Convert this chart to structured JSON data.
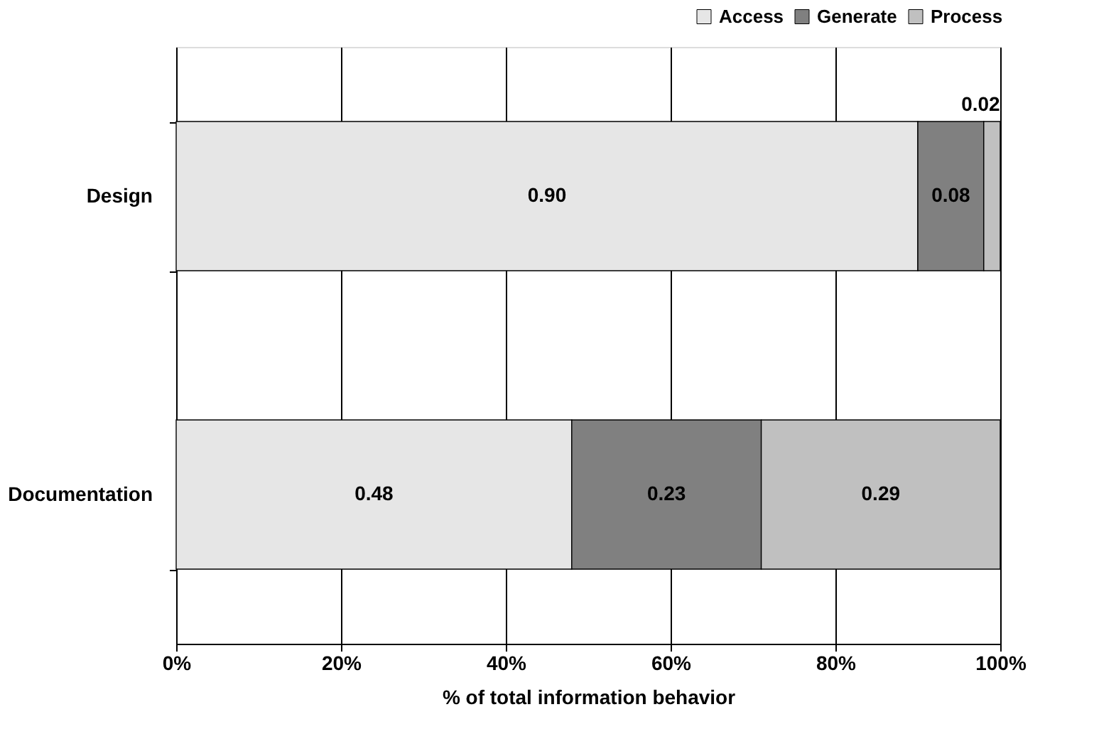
{
  "chart_data": {
    "type": "bar",
    "orientation": "horizontal",
    "stacked": true,
    "categories": [
      "Design",
      "Documentation"
    ],
    "series": [
      {
        "name": "Access",
        "color": "#e6e6e6",
        "values": [
          0.9,
          0.48
        ],
        "value_labels": [
          "0.90",
          "0.48"
        ]
      },
      {
        "name": "Generate",
        "color": "#808080",
        "values": [
          0.08,
          0.23
        ],
        "value_labels": [
          "0.08",
          "0.23"
        ]
      },
      {
        "name": "Process",
        "color": "#c0c0c0",
        "values": [
          0.02,
          0.29
        ],
        "value_labels": [
          "0.02",
          "0.29"
        ]
      }
    ],
    "xlim": [
      0,
      1
    ],
    "xticks": [
      {
        "value": 0,
        "label": "0%"
      },
      {
        "value": 0.2,
        "label": "20%"
      },
      {
        "value": 0.4,
        "label": "40%"
      },
      {
        "value": 0.6,
        "label": "60%"
      },
      {
        "value": 0.8,
        "label": "80%"
      },
      {
        "value": 1,
        "label": "100%"
      }
    ],
    "xlabel": "% of total information behavior",
    "grid": "x",
    "legend": "top right"
  }
}
